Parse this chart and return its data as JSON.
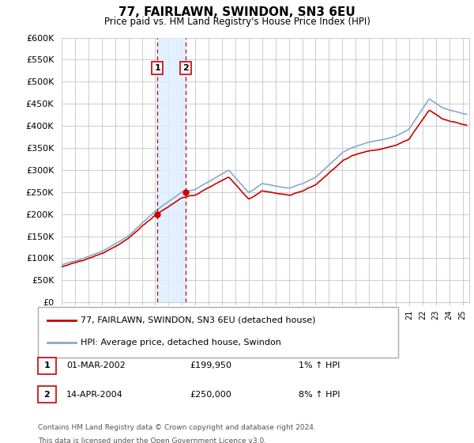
{
  "title": "77, FAIRLAWN, SWINDON, SN3 6EU",
  "subtitle": "Price paid vs. HM Land Registry's House Price Index (HPI)",
  "ylim": [
    0,
    600000
  ],
  "yticks": [
    0,
    50000,
    100000,
    150000,
    200000,
    250000,
    300000,
    350000,
    400000,
    450000,
    500000,
    550000,
    600000
  ],
  "ytick_labels": [
    "£0",
    "£50K",
    "£100K",
    "£150K",
    "£200K",
    "£250K",
    "£300K",
    "£350K",
    "£400K",
    "£450K",
    "£500K",
    "£550K",
    "£600K"
  ],
  "legend_line1": "77, FAIRLAWN, SWINDON, SN3 6EU (detached house)",
  "legend_line2": "HPI: Average price, detached house, Swindon",
  "t1_label": "1",
  "t2_label": "2",
  "t1_date": "01-MAR-2002",
  "t1_price": "£199,950",
  "t1_hpi": "1% ↑ HPI",
  "t2_date": "14-APR-2004",
  "t2_price": "£250,000",
  "t2_hpi": "8% ↑ HPI",
  "footnote1": "Contains HM Land Registry data © Crown copyright and database right 2024.",
  "footnote2": "This data is licensed under the Open Government Licence v3.0.",
  "red_color": "#cc0000",
  "blue_color": "#88aacc",
  "shade_color": "#ddeeff",
  "grid_color": "#cccccc",
  "bg_color": "#ffffff",
  "t1_year": 2002.17,
  "t2_year": 2004.29,
  "t1_price_val": 199950,
  "t2_price_val": 250000,
  "xmin": 1995,
  "xmax": 2025.5
}
